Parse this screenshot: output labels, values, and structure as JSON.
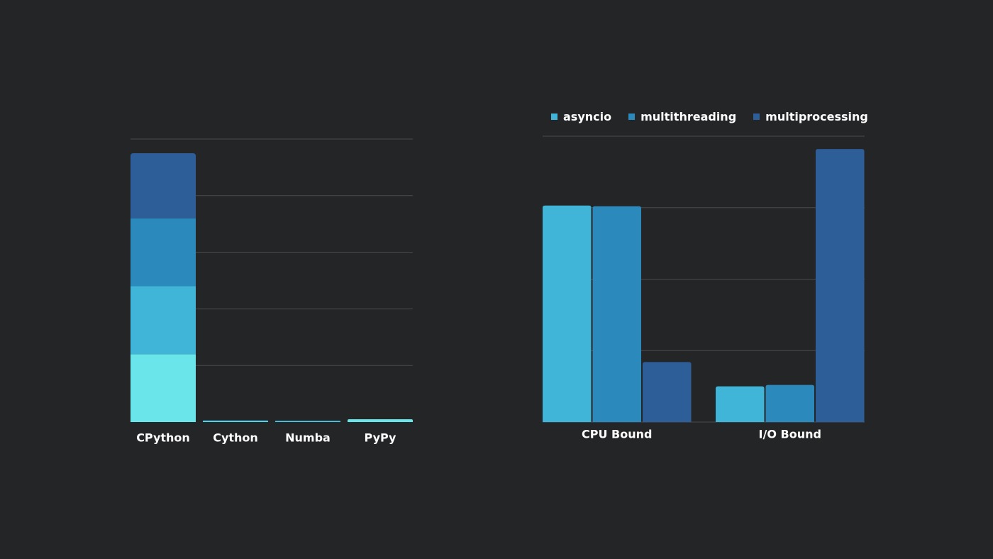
{
  "chart_data": [
    {
      "type": "bar",
      "stacked": true,
      "categories": [
        "CPython",
        "Cython",
        "Numba",
        "PyPy"
      ],
      "series": [
        {
          "values": [
            1.2,
            0.01,
            0.005,
            0.05
          ],
          "color": "#6ae6ea"
        },
        {
          "values": [
            1.2,
            0.01,
            0.005,
            0.0
          ],
          "color": "#40b5d8"
        },
        {
          "values": [
            1.2,
            0.0,
            0.0,
            0.0
          ],
          "color": "#2c89bc"
        },
        {
          "values": [
            1.15,
            0.0,
            0.0,
            0.0
          ],
          "color": "#2d5e98"
        }
      ],
      "ylim": [
        0,
        5
      ],
      "grid": true,
      "legend": "none"
    },
    {
      "type": "bar",
      "categories": [
        "CPU Bound",
        "I/O Bound"
      ],
      "series": [
        {
          "name": "asyncio",
          "values": [
            3.03,
            0.5
          ],
          "color": "#40b5d8"
        },
        {
          "name": "multithreading",
          "values": [
            3.02,
            0.52
          ],
          "color": "#2c89bc"
        },
        {
          "name": "multiprocessing",
          "values": [
            0.84,
            3.82
          ],
          "color": "#2d5e98"
        }
      ],
      "ylim": [
        0,
        4
      ],
      "grid": true,
      "legend": "top"
    }
  ]
}
